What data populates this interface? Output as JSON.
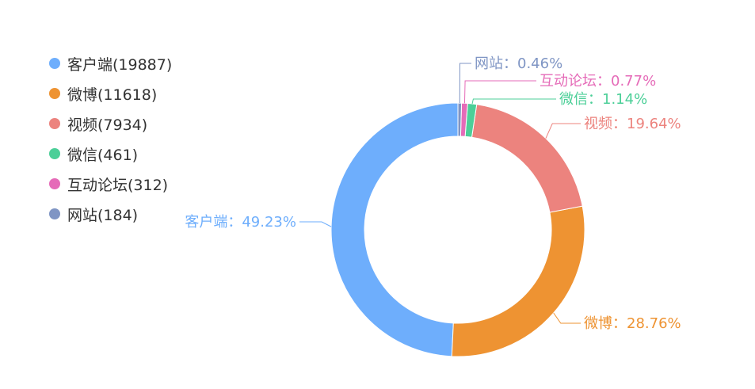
{
  "chart_data": {
    "type": "pie",
    "donut": true,
    "title": "",
    "legend_position": "top-left",
    "series": [
      {
        "name": "客户端",
        "value": 19887,
        "percent_label": "49.23%",
        "color": "#6eaefc"
      },
      {
        "name": "微博",
        "value": 11618,
        "percent_label": "28.76%",
        "color": "#ee9332"
      },
      {
        "name": "视频",
        "value": 7934,
        "percent_label": "19.64%",
        "color": "#ec837e"
      },
      {
        "name": "微信",
        "value": 461,
        "percent_label": "1.14%",
        "color": "#4ccf98"
      },
      {
        "name": "互动论坛",
        "value": 312,
        "percent_label": "0.77%",
        "color": "#e56bb8"
      },
      {
        "name": "网站",
        "value": 184,
        "percent_label": "0.46%",
        "color": "#7f95c4"
      }
    ]
  }
}
